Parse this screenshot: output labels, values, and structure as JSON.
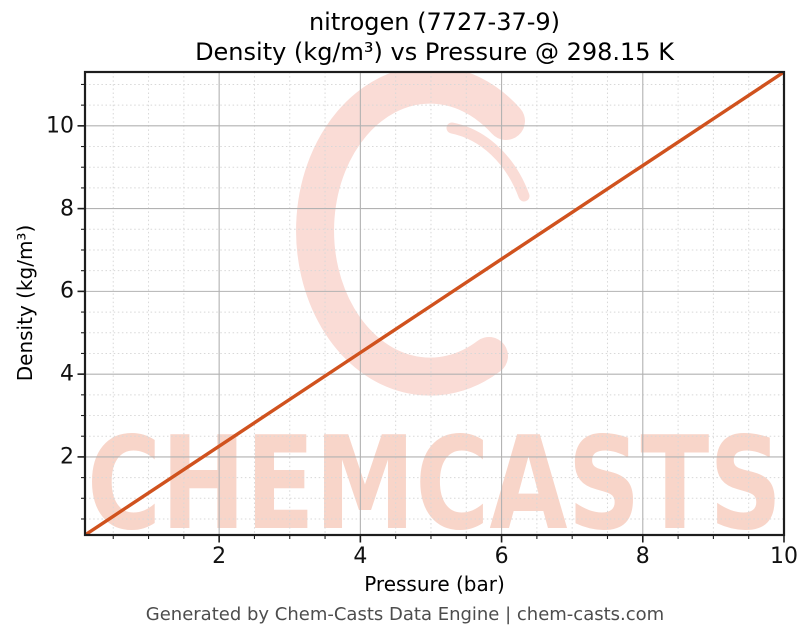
{
  "header": {
    "title_line1": "nitrogen (7727-37-9)",
    "title_line2": "Density (kg/m³) vs Pressure @ 298.15 K"
  },
  "footer": {
    "text": "Generated by Chem-Casts Data Engine | chem-casts.com"
  },
  "watermark": {
    "text": "CHEMCASTS",
    "logo": "c-swirl-logo",
    "logo_color": "#fadcd6",
    "text_color": "#f8d5c9"
  },
  "chart_data": {
    "type": "line",
    "title": "nitrogen (7727-37-9)",
    "subtitle": "Density (kg/m³) vs Pressure @ 298.15 K",
    "xlabel": "Pressure (bar)",
    "ylabel": "Density (kg/m³)",
    "xlim": [
      0.1,
      10
    ],
    "ylim": [
      0.113,
      11.301
    ],
    "x_major_ticks": [
      2,
      4,
      6,
      8,
      10
    ],
    "y_major_ticks": [
      2,
      4,
      6,
      8,
      10
    ],
    "minor_tick_step": 0.5,
    "grid": {
      "major": "solid",
      "minor": "dotted",
      "major_color": "#b2b2b2",
      "minor_color": "#d8d8d8"
    },
    "legend": "none",
    "axis_color": "#1d1d1d",
    "series": [
      {
        "name": "nitrogen density at 298.15 K",
        "color": "#d0521e",
        "x": [
          0.1,
          0.5,
          1,
          2,
          3,
          4,
          5,
          6,
          7,
          8,
          9,
          10
        ],
        "y": [
          0.113,
          0.565,
          1.13,
          2.26,
          3.39,
          4.52,
          5.65,
          6.781,
          7.911,
          9.041,
          10.171,
          11.301
        ]
      }
    ]
  }
}
